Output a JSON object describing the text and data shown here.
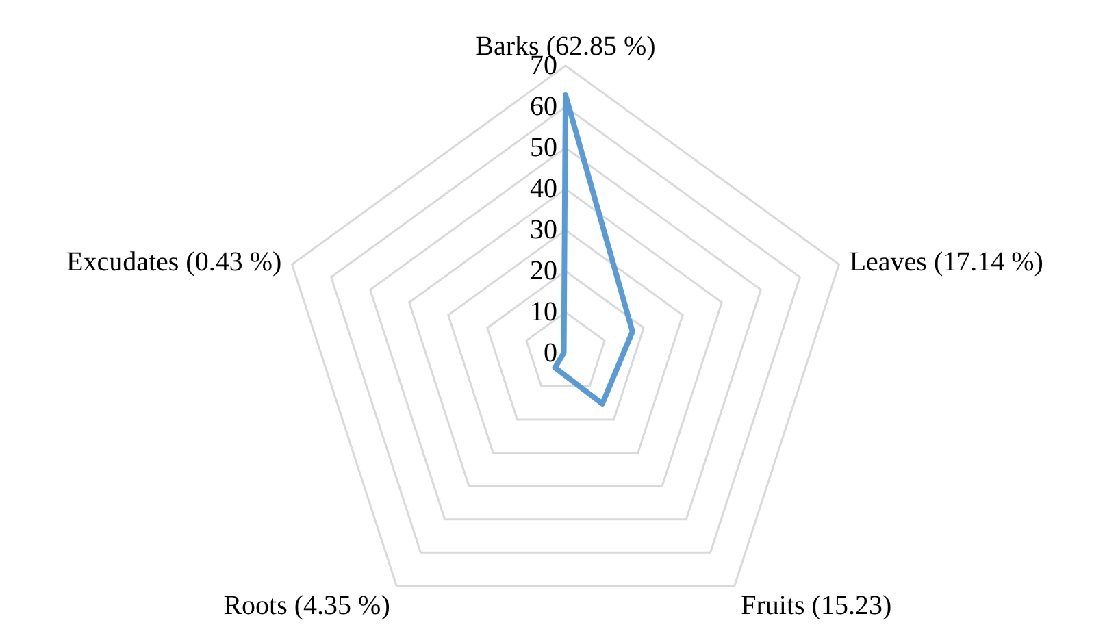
{
  "chart_data": {
    "type": "radar",
    "categories": [
      "Barks (62.85 %)",
      "Leaves (17.14 %)",
      "Fruits (15.23)",
      "Roots (4.35 %)",
      "Excudates (0.43 %)"
    ],
    "series": [
      {
        "color": "#5b9bd5",
        "values": [
          62.85,
          17.14,
          15.23,
          4.35,
          0.43
        ]
      }
    ],
    "ylim": [
      0,
      70
    ],
    "yticks": [
      0,
      10,
      20,
      30,
      40,
      50,
      60,
      70
    ],
    "grid": true,
    "marker": "none"
  }
}
